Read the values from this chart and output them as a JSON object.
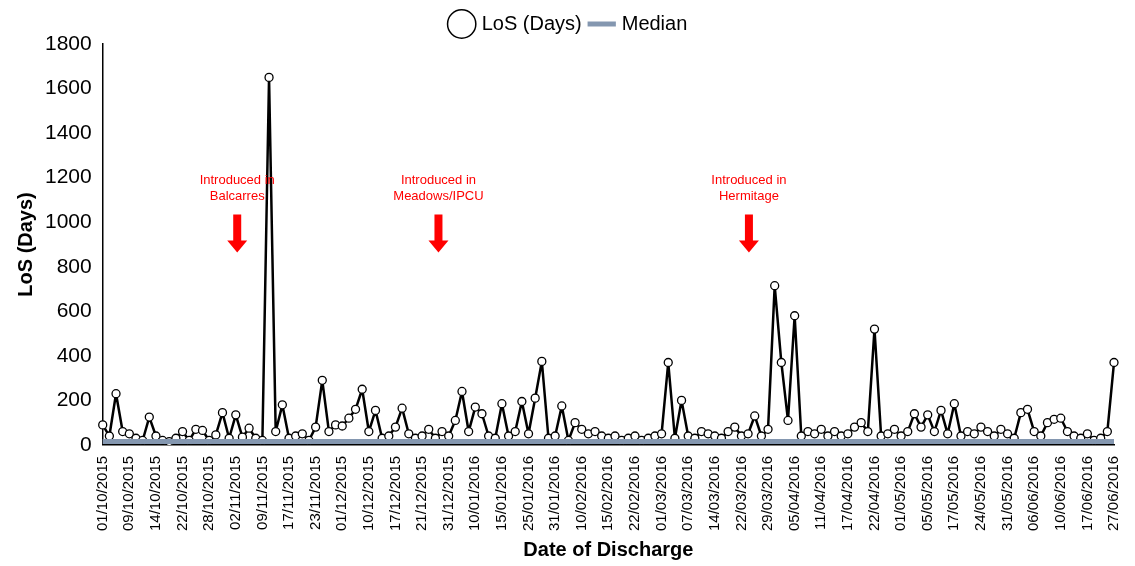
{
  "chart_data": {
    "type": "line",
    "xlabel": "Date of Discharge",
    "ylabel": "LoS (Days)",
    "categories": [
      "01/10/2015",
      null,
      null,
      null,
      "09/10/2015",
      null,
      null,
      null,
      "14/10/2015",
      null,
      null,
      null,
      "22/10/2015",
      null,
      null,
      null,
      "28/10/2015",
      null,
      null,
      null,
      "02/11/2015",
      null,
      null,
      null,
      "09/11/2015",
      null,
      null,
      null,
      "17/11/2015",
      null,
      null,
      null,
      "23/11/2015",
      null,
      null,
      null,
      "01/12/2015",
      null,
      null,
      null,
      "10/12/2015",
      null,
      null,
      null,
      "17/12/2015",
      null,
      null,
      null,
      "21/12/2015",
      null,
      null,
      null,
      "31/12/2015",
      null,
      null,
      null,
      "10/01/2016",
      null,
      null,
      null,
      "15/01/2016",
      null,
      null,
      null,
      "25/01/2016",
      null,
      null,
      null,
      "31/01/2016",
      null,
      null,
      null,
      "10/02/2016",
      null,
      null,
      null,
      "15/02/2016",
      null,
      null,
      null,
      "22/02/2016",
      null,
      null,
      null,
      "01/03/2016",
      null,
      null,
      null,
      "07/03/2016",
      null,
      null,
      null,
      "14/03/2016",
      null,
      null,
      null,
      "22/03/2016",
      null,
      null,
      null,
      "29/03/2016",
      null,
      null,
      null,
      "05/04/2016",
      null,
      null,
      null,
      "11/04/2016",
      null,
      null,
      null,
      "17/04/2016",
      null,
      null,
      null,
      "22/04/2016",
      null,
      null,
      null,
      "01/05/2016",
      null,
      null,
      null,
      "05/05/2016",
      null,
      null,
      null,
      "17/05/2016",
      null,
      null,
      null,
      "24/05/2016",
      null,
      null,
      null,
      "31/05/2016",
      null,
      null,
      null,
      "06/06/2016",
      null,
      null,
      null,
      "10/06/2016",
      null,
      null,
      null,
      "17/06/2016",
      null,
      null,
      null,
      "27/06/2016"
    ],
    "series": [
      {
        "name": "LoS (Days)",
        "color": "#000000",
        "marker": "circle",
        "values": [
          90,
          40,
          230,
          60,
          50,
          30,
          20,
          125,
          40,
          20,
          15,
          30,
          60,
          20,
          70,
          65,
          20,
          45,
          145,
          30,
          135,
          35,
          75,
          30,
          20,
          1650,
          60,
          180,
          30,
          40,
          50,
          20,
          80,
          290,
          60,
          90,
          85,
          120,
          160,
          250,
          60,
          155,
          30,
          40,
          80,
          165,
          50,
          30,
          40,
          70,
          30,
          60,
          40,
          110,
          240,
          60,
          170,
          140,
          40,
          30,
          185,
          40,
          60,
          195,
          50,
          210,
          375,
          30,
          40,
          175,
          20,
          100,
          70,
          50,
          60,
          40,
          30,
          40,
          20,
          30,
          40,
          20,
          30,
          40,
          50,
          370,
          30,
          200,
          40,
          30,
          60,
          50,
          40,
          30,
          60,
          80,
          40,
          50,
          130,
          40,
          70,
          715,
          370,
          110,
          580,
          40,
          60,
          50,
          70,
          40,
          60,
          40,
          50,
          80,
          100,
          60,
          520,
          40,
          50,
          70,
          40,
          60,
          140,
          80,
          135,
          60,
          155,
          50,
          185,
          40,
          60,
          50,
          80,
          60,
          40,
          70,
          50,
          30,
          145,
          160,
          60,
          40,
          100,
          115,
          120,
          60,
          40,
          30,
          50,
          20,
          30,
          60,
          370
        ]
      },
      {
        "name": "Median",
        "color": "#8497b0",
        "marker": "none",
        "values": [
          15,
          15,
          15,
          15,
          15,
          15,
          15,
          15,
          15,
          15,
          15,
          15,
          15,
          15,
          15,
          15,
          15,
          15,
          15,
          15,
          15,
          15,
          15,
          15,
          15,
          15,
          15,
          15,
          15,
          15,
          15,
          15,
          15,
          15,
          15,
          15,
          15,
          15,
          15,
          15,
          15,
          15,
          15,
          15,
          15,
          15,
          15,
          15,
          15,
          15,
          15,
          15,
          15,
          15,
          15,
          15,
          15,
          15,
          15,
          15,
          15,
          15,
          15,
          15,
          15,
          15,
          15,
          15,
          15,
          15,
          15,
          15,
          15,
          15,
          15,
          15,
          15,
          15,
          15,
          15,
          15,
          15,
          15,
          15,
          15,
          15,
          15,
          15,
          15,
          15,
          15,
          15,
          15,
          15,
          15,
          15,
          15,
          15,
          15,
          15,
          15,
          15,
          15,
          15,
          15,
          15,
          15,
          15,
          15,
          15,
          15,
          15,
          15,
          15,
          15,
          15,
          15,
          15,
          15,
          15,
          15,
          15,
          15,
          15,
          15,
          15,
          15,
          15,
          15,
          15,
          15,
          15,
          15,
          15,
          15,
          15,
          15,
          15,
          15,
          15,
          15,
          15,
          15,
          15,
          15,
          15,
          15,
          15,
          15,
          15,
          15,
          15,
          15
        ]
      }
    ],
    "ylim": [
      0,
      1800
    ],
    "yticks": [
      0,
      200,
      400,
      600,
      800,
      1000,
      1200,
      1400,
      1600,
      1800
    ],
    "grid": false,
    "legend": "top",
    "line_style": "solid",
    "annotations": [
      "Introduced in Balcarres",
      "Introduced in Meadows/IPCU",
      "Introduced in Hermitage"
    ]
  }
}
